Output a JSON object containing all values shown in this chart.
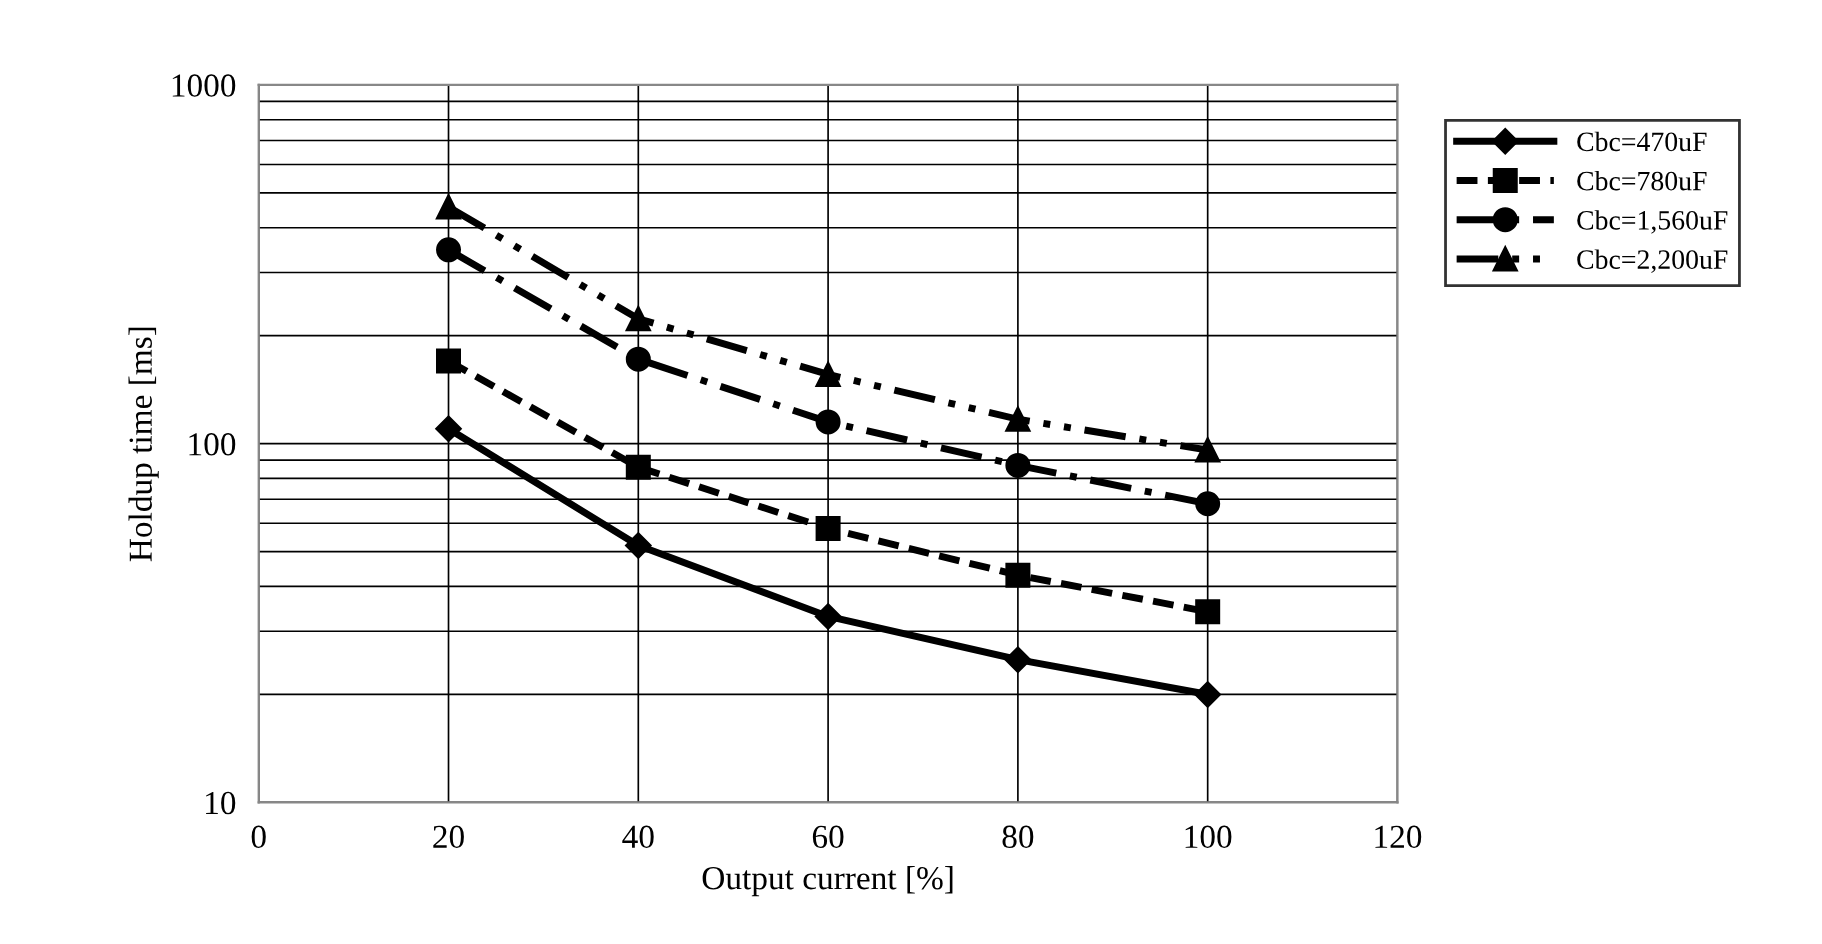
{
  "chart_data": {
    "type": "line",
    "xlabel": "Output current [%]",
    "ylabel": "Holdup time [ms]",
    "log": "y",
    "grid": true,
    "legend": "right",
    "xlim": [
      0,
      120
    ],
    "xticks": [
      0,
      20,
      40,
      60,
      80,
      100,
      120
    ],
    "ylim": [
      10,
      1000
    ],
    "yticks": [
      10,
      100,
      1000
    ],
    "x": [
      20,
      40,
      60,
      80,
      100
    ],
    "series": [
      {
        "name": "Cbc=470uF",
        "color": "#000000",
        "marker": "diamond",
        "line_style": "solid",
        "values": [
          110,
          52,
          33,
          25,
          20
        ]
      },
      {
        "name": "Cbc=780uF",
        "color": "#000000",
        "marker": "square",
        "line_style": "dashed",
        "values": [
          170,
          86,
          58,
          43,
          34
        ]
      },
      {
        "name": "Cbc=1,560uF",
        "color": "#000000",
        "marker": "circle",
        "line_style": "dashdot",
        "values": [
          347,
          172,
          115,
          87,
          68
        ]
      },
      {
        "name": "Cbc=2,200uF",
        "color": "#000000",
        "marker": "triangle",
        "line_style": "dashdotdot",
        "values": [
          457,
          223,
          156,
          117,
          96
        ]
      }
    ]
  }
}
